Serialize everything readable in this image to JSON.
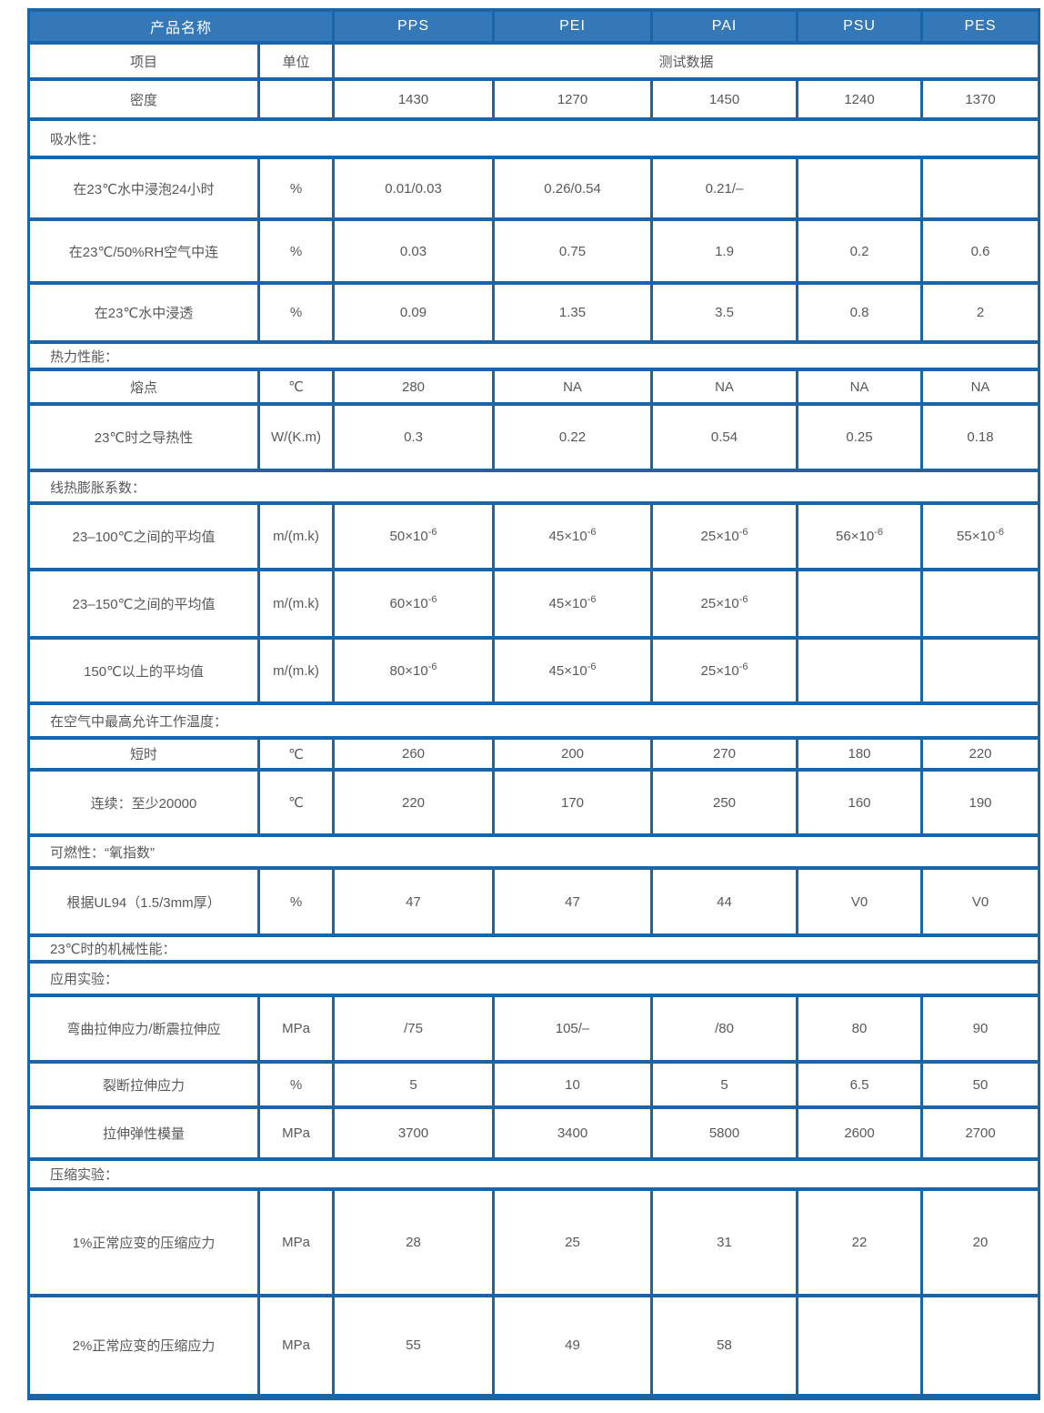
{
  "colors": {
    "header_bg": "#3478b8",
    "grid_border": "#1a64a8",
    "header_text": "#ffffff",
    "cell_text": "#58585a",
    "page_bg": "#ffffff"
  },
  "table": {
    "header": {
      "product_label": "产品名称",
      "products": [
        "PPS",
        "PEI",
        "PAI",
        "PSU",
        "PES"
      ],
      "item_label": "项目",
      "unit_label": "单位",
      "data_label": "测试数据"
    },
    "rows": [
      {
        "type": "data",
        "label": "密度",
        "unit": "",
        "values": [
          "1430",
          "1270",
          "1450",
          "1240",
          "1370"
        ]
      },
      {
        "type": "section",
        "label": "吸水性："
      },
      {
        "type": "data",
        "label": "在23℃水中浸泡24小时",
        "unit": "%",
        "values": [
          "0.01/0.03",
          "0.26/0.54",
          "0.21/–",
          "",
          ""
        ]
      },
      {
        "type": "data",
        "label": "在23℃/50%RH空气中连",
        "unit": "%",
        "values": [
          "0.03",
          "0.75",
          "1.9",
          "0.2",
          "0.6"
        ]
      },
      {
        "type": "data",
        "label": "在23℃水中浸透",
        "unit": "%",
        "values": [
          "0.09",
          "1.35",
          "3.5",
          "0.8",
          "2"
        ]
      },
      {
        "type": "section",
        "label": "热力性能："
      },
      {
        "type": "data",
        "label": "熔点",
        "unit": "℃",
        "values": [
          "280",
          "NA",
          "NA",
          "NA",
          "NA"
        ]
      },
      {
        "type": "data",
        "label": "23℃时之导热性",
        "unit": "W/(K.m)",
        "values": [
          "0.3",
          "0.22",
          "0.54",
          "0.25",
          "0.18"
        ]
      },
      {
        "type": "section",
        "label": "线热膨胀系数："
      },
      {
        "type": "data",
        "label": "23–100℃之间的平均值",
        "unit": "m/(m.k)",
        "values": [
          "50×10^{-6}",
          "45×10^{-6}",
          "25×10^{-6}",
          "56×10^{-6}",
          "55×10^{-6}"
        ]
      },
      {
        "type": "data",
        "label": "23–150℃之间的平均值",
        "unit": "m/(m.k)",
        "values": [
          "60×10^{-6}",
          "45×10^{-6}",
          "25×10^{-6}",
          "",
          ""
        ]
      },
      {
        "type": "data",
        "label": "150℃以上的平均值",
        "unit": "m/(m.k)",
        "values": [
          "80×10^{-6}",
          "45×10^{-6}",
          "25×10^{-6}",
          "",
          ""
        ]
      },
      {
        "type": "section",
        "label": "在空气中最高允许工作温度："
      },
      {
        "type": "data",
        "label": "短时",
        "unit": "℃",
        "values": [
          "260",
          "200",
          "270",
          "180",
          "220"
        ]
      },
      {
        "type": "data",
        "label": "连续：至少20000",
        "unit": "℃",
        "values": [
          "220",
          "170",
          "250",
          "160",
          "190"
        ]
      },
      {
        "type": "section",
        "label": "可燃性：“氧指数”"
      },
      {
        "type": "data",
        "label": "根据UL94（1.5/3mm厚）",
        "unit": "%",
        "values": [
          "47",
          "47",
          "44",
          "V0",
          "V0"
        ]
      },
      {
        "type": "section",
        "label": "23℃时的机械性能："
      },
      {
        "type": "section",
        "label": "应用实验："
      },
      {
        "type": "data",
        "label": "弯曲拉伸应力/断震拉伸应",
        "unit": "MPa",
        "values": [
          "/75",
          "105/–",
          "/80",
          "80",
          "90"
        ]
      },
      {
        "type": "data",
        "label": "裂断拉伸应力",
        "unit": "%",
        "values": [
          "5",
          "10",
          "5",
          "6.5",
          "50"
        ]
      },
      {
        "type": "data",
        "label": "拉伸弹性模量",
        "unit": "MPa",
        "values": [
          "3700",
          "3400",
          "5800",
          "2600",
          "2700"
        ]
      },
      {
        "type": "section",
        "label": "压缩实验："
      },
      {
        "type": "data",
        "label": "1%正常应变的压缩应力",
        "unit": "MPa",
        "values": [
          "28",
          "25",
          "31",
          "22",
          "20"
        ]
      },
      {
        "type": "data",
        "label": "2%正常应变的压缩应力",
        "unit": "MPa",
        "values": [
          "55",
          "49",
          "58",
          "",
          ""
        ]
      }
    ]
  }
}
